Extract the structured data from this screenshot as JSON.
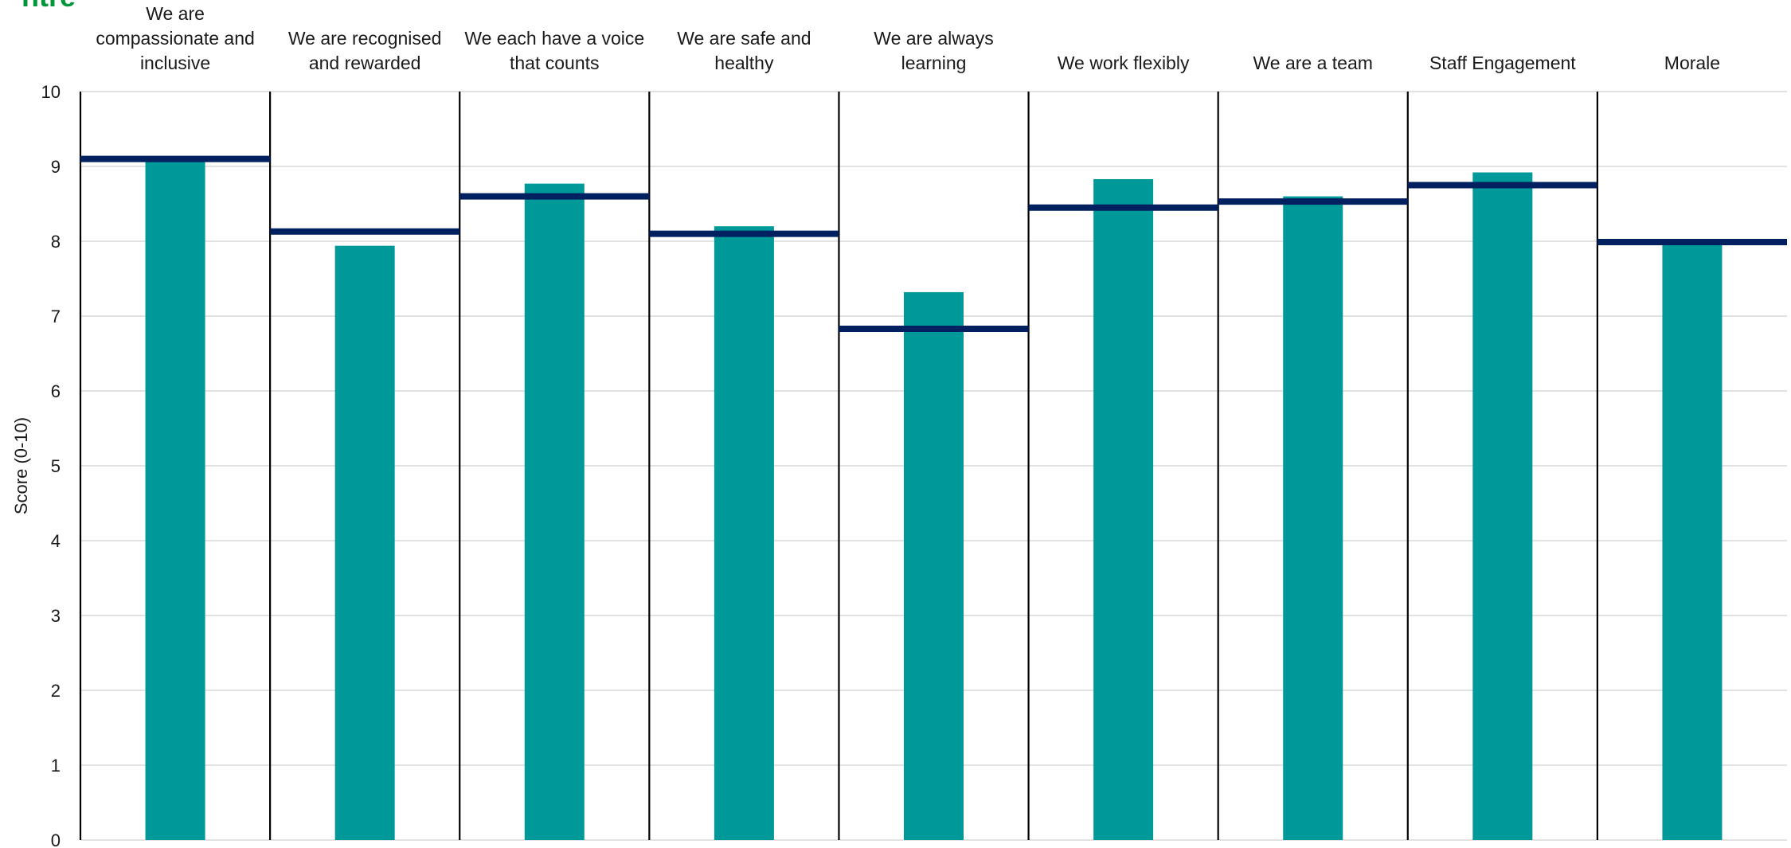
{
  "logo": {
    "visible_text": "ntre",
    "color": "#009639"
  },
  "colors": {
    "bar": "#009999",
    "benchmark": "#002060",
    "grid": "#d9d9d9",
    "divider": "#000000"
  },
  "chart_data": {
    "type": "bar",
    "title": "",
    "xlabel": "",
    "ylabel": "Score (0-10)",
    "ylim": [
      0,
      10
    ],
    "yticks": [
      "0",
      "1",
      "2",
      "3",
      "4",
      "5",
      "6",
      "7",
      "8",
      "9",
      "10"
    ],
    "grid": true,
    "legend": "none",
    "categories": [
      [
        "We are",
        "compassionate and",
        "inclusive"
      ],
      [
        "We are recognised",
        "and rewarded"
      ],
      [
        "We each have a voice",
        "that counts"
      ],
      [
        "We are safe and",
        "healthy"
      ],
      [
        "We are always",
        "learning"
      ],
      [
        "We work flexibly"
      ],
      [
        "We are a team"
      ],
      [
        "Staff Engagement"
      ],
      [
        "Morale"
      ]
    ],
    "series": [
      {
        "kind": "bar",
        "values": [
          9.06,
          7.94,
          8.77,
          8.2,
          7.32,
          8.83,
          8.6,
          8.92,
          8.0
        ]
      },
      {
        "kind": "marker",
        "values": [
          9.1,
          8.13,
          8.6,
          8.1,
          6.83,
          8.45,
          8.53,
          8.75,
          7.99
        ]
      }
    ]
  }
}
